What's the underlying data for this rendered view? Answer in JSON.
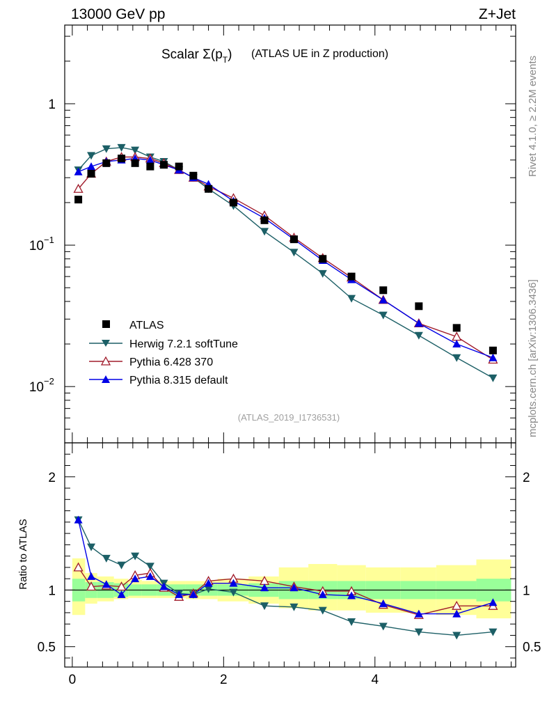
{
  "header": {
    "left_label": "13000 GeV pp",
    "right_label": "Z+Jet",
    "title_main": "Scalar Σ(p",
    "title_sub": "T",
    "title_close": ")",
    "title_rest": "(ATLAS UE in Z production)",
    "analysis_id": "(ATLAS_2019_I1736531)",
    "side_top": "Rivet 4.1.0, ≥ 2.2M events",
    "side_bottom": "mcplots.cern.ch [arXiv:1306.3436]"
  },
  "chart_data": {
    "type": "scatter",
    "x": [
      0.08,
      0.25,
      0.45,
      0.65,
      0.83,
      1.03,
      1.21,
      1.41,
      1.6,
      1.8,
      2.13,
      2.54,
      2.93,
      3.31,
      3.69,
      4.11,
      4.58,
      5.08,
      5.56
    ],
    "main": {
      "ylabel_ticks": [
        {
          "value": 1,
          "label": "1"
        },
        {
          "value": 0.1,
          "label": "10",
          "exp": "−1"
        },
        {
          "value": 0.01,
          "label": "10",
          "exp": "−2"
        }
      ],
      "ylim": [
        0.004,
        3.6
      ],
      "yscale": "log"
    },
    "ratio": {
      "ylabel": "Ratio to ATLAS",
      "ylim": [
        0.32,
        2.3
      ],
      "ticks": [
        {
          "value": 0.5,
          "label": "0.5"
        },
        {
          "value": 1,
          "label": "1"
        },
        {
          "value": 2,
          "label": "2"
        }
      ],
      "band_edges": [
        0,
        0.17,
        0.33,
        0.55,
        0.74,
        0.92,
        1.12,
        1.3,
        1.5,
        1.7,
        1.92,
        2.33,
        2.73,
        3.12,
        3.5,
        3.88,
        4.34,
        4.81,
        5.34,
        5.8
      ],
      "green_up": [
        1.1,
        1.07,
        1.07,
        1.06,
        1.05,
        1.05,
        1.05,
        1.05,
        1.05,
        1.05,
        1.05,
        1.06,
        1.08,
        1.08,
        1.08,
        1.08,
        1.08,
        1.08,
        1.1
      ],
      "green_lo": [
        0.9,
        0.93,
        0.93,
        0.94,
        0.95,
        0.95,
        0.95,
        0.95,
        0.95,
        0.95,
        0.95,
        0.94,
        0.92,
        0.92,
        0.92,
        0.92,
        0.92,
        0.92,
        0.9
      ],
      "yellow_up": [
        1.28,
        1.15,
        1.12,
        1.1,
        1.09,
        1.08,
        1.08,
        1.08,
        1.08,
        1.08,
        1.1,
        1.12,
        1.2,
        1.23,
        1.22,
        1.2,
        1.2,
        1.22,
        1.27
      ],
      "yellow_lo": [
        0.78,
        0.88,
        0.9,
        0.92,
        0.93,
        0.93,
        0.93,
        0.93,
        0.92,
        0.92,
        0.9,
        0.88,
        0.84,
        0.82,
        0.82,
        0.8,
        0.8,
        0.78,
        0.75
      ]
    },
    "xlim": [
      -0.1,
      5.86
    ],
    "x_ticks": [
      {
        "value": 0,
        "label": "0"
      },
      {
        "value": 2,
        "label": "2"
      },
      {
        "value": 4,
        "label": "4"
      }
    ],
    "series": [
      {
        "name": "ATLAS",
        "color": "#000000",
        "marker": "square",
        "values": [
          0.21,
          0.32,
          0.38,
          0.41,
          0.38,
          0.36,
          0.37,
          0.36,
          0.31,
          0.25,
          0.2,
          0.15,
          0.11,
          0.08,
          0.06,
          0.048,
          0.037,
          0.026,
          0.018
        ],
        "ratio": [
          1,
          1,
          1,
          1,
          1,
          1,
          1,
          1,
          1,
          1,
          1,
          1,
          1,
          1,
          1,
          1,
          1,
          1,
          1
        ]
      },
      {
        "name": "Herwig 7.2.1 softTune",
        "color": "#1c5f66",
        "marker": "triangle-down",
        "values": [
          0.34,
          0.43,
          0.48,
          0.49,
          0.47,
          0.42,
          0.39,
          0.34,
          0.3,
          0.25,
          0.19,
          0.125,
          0.089,
          0.063,
          0.042,
          0.032,
          0.023,
          0.016,
          0.0115
        ],
        "ratio": [
          1.62,
          1.38,
          1.28,
          1.22,
          1.3,
          1.21,
          1.06,
          0.97,
          0.96,
          1.01,
          0.98,
          0.86,
          0.85,
          0.82,
          0.72,
          0.68,
          0.63,
          0.6,
          0.63
        ]
      },
      {
        "name": "Pythia 6.428 370",
        "color": "#a01b2b",
        "marker": "triangle-up-open",
        "values": [
          0.25,
          0.32,
          0.39,
          0.42,
          0.42,
          0.41,
          0.38,
          0.34,
          0.3,
          0.26,
          0.215,
          0.162,
          0.113,
          0.081,
          0.059,
          0.041,
          0.028,
          0.0225,
          0.0155
        ],
        "ratio": [
          1.2,
          1.03,
          1.04,
          1.03,
          1.13,
          1.15,
          1.02,
          0.94,
          0.97,
          1.08,
          1.1,
          1.08,
          1.03,
          0.99,
          0.99,
          0.87,
          0.78,
          0.86,
          0.86
        ]
      },
      {
        "name": "Pythia 8.315 default",
        "color": "#0000e6",
        "marker": "triangle-up",
        "values": [
          0.33,
          0.36,
          0.39,
          0.4,
          0.41,
          0.4,
          0.37,
          0.34,
          0.3,
          0.27,
          0.205,
          0.155,
          0.11,
          0.078,
          0.057,
          0.041,
          0.028,
          0.02,
          0.016
        ],
        "ratio": [
          1.62,
          1.12,
          1.05,
          0.96,
          1.1,
          1.12,
          1.03,
          0.96,
          0.96,
          1.06,
          1.06,
          1.02,
          1.02,
          0.96,
          0.95,
          0.88,
          0.79,
          0.79,
          0.89
        ]
      }
    ]
  }
}
